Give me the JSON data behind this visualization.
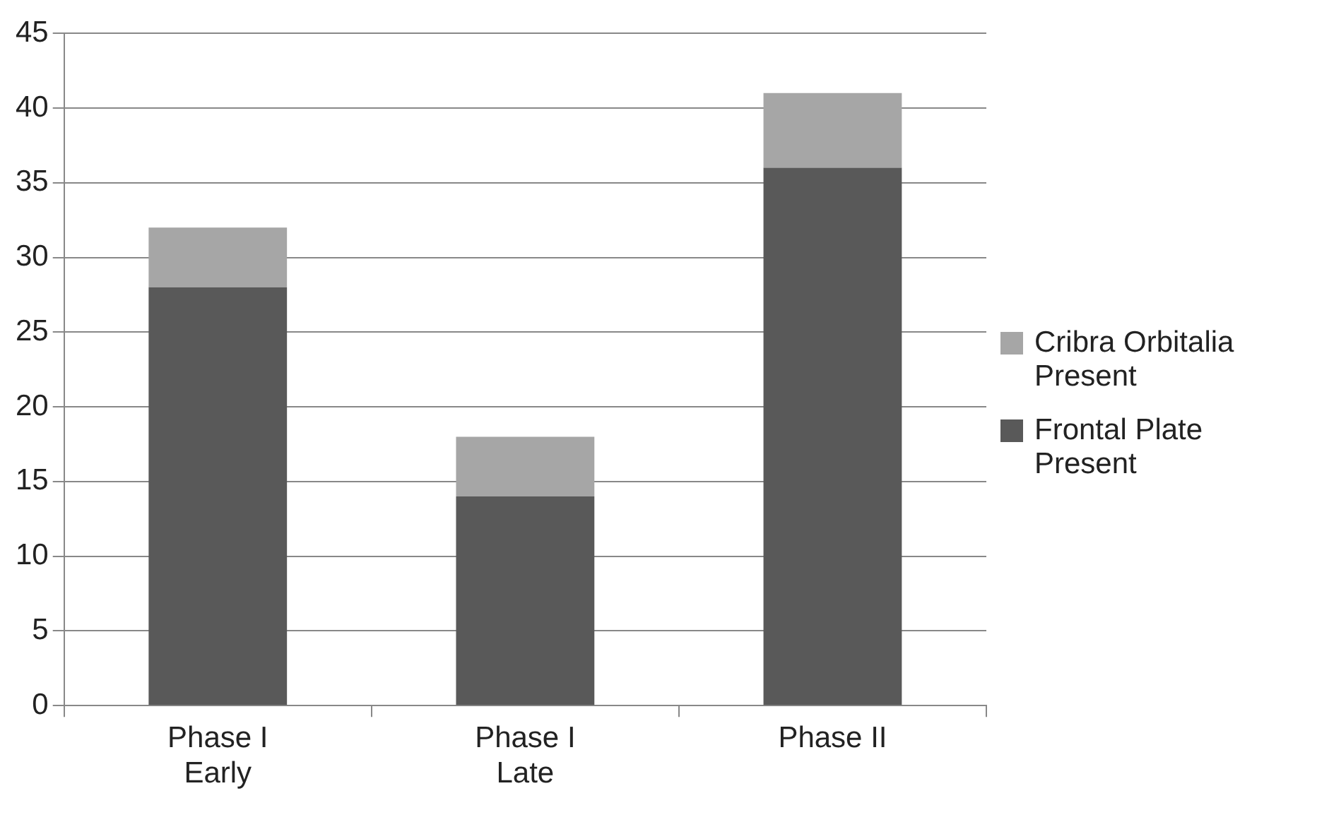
{
  "chart_data": {
    "type": "bar",
    "stacked": true,
    "categories": [
      "Phase I Early",
      "Phase I Late",
      "Phase II"
    ],
    "series": [
      {
        "name": "Frontal Plate Present",
        "color": "#595959",
        "values": [
          28,
          14,
          36
        ]
      },
      {
        "name": "Cribra Orbitalia Present",
        "color": "#a6a6a6",
        "values": [
          4,
          4,
          5
        ]
      }
    ],
    "ylim": [
      0,
      45
    ],
    "yticks": [
      0,
      5,
      10,
      15,
      20,
      25,
      30,
      35,
      40,
      45
    ],
    "grid": "y",
    "legend": "right"
  }
}
